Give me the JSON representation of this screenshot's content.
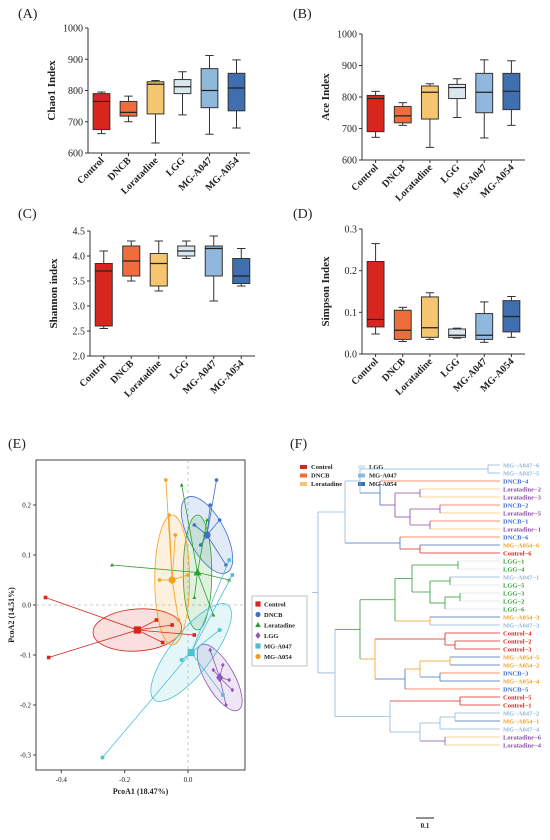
{
  "groups": [
    {
      "name": "Control",
      "color": "#d7261e"
    },
    {
      "name": "DNCB",
      "color": "#ef6c3c"
    },
    {
      "name": "Loratadine",
      "color": "#f6c56f"
    },
    {
      "name": "LGG",
      "color": "#dbe7ef"
    },
    {
      "name": "MG-A047",
      "color": "#8fb8dc"
    },
    {
      "name": "MG-A054",
      "color": "#3f6fae"
    }
  ],
  "chart_data": [
    {
      "panel": "(A)",
      "type": "box",
      "ylabel": "Chao1 Index",
      "ylim": [
        600,
        1000
      ],
      "yticks": [
        600,
        700,
        800,
        900,
        1000
      ],
      "categories": [
        "Control",
        "DNCB",
        "Loratadine",
        "LGG",
        "MG-A047",
        "MG-A054"
      ],
      "boxes": [
        {
          "min": 662,
          "q1": 675,
          "median": 765,
          "q3": 790,
          "max": 795
        },
        {
          "min": 700,
          "q1": 718,
          "median": 730,
          "q3": 765,
          "max": 782
        },
        {
          "min": 632,
          "q1": 725,
          "median": 820,
          "q3": 828,
          "max": 832
        },
        {
          "min": 722,
          "q1": 790,
          "median": 812,
          "q3": 835,
          "max": 860
        },
        {
          "min": 660,
          "q1": 745,
          "median": 800,
          "q3": 870,
          "max": 912
        },
        {
          "min": 680,
          "q1": 735,
          "median": 808,
          "q3": 855,
          "max": 898
        }
      ]
    },
    {
      "panel": "(B)",
      "type": "box",
      "ylabel": "Ace Index",
      "ylim": [
        600,
        1000
      ],
      "yticks": [
        600,
        700,
        800,
        900,
        1000
      ],
      "categories": [
        "Control",
        "DNCB",
        "Loratadine",
        "LGG",
        "MG-A047",
        "MG-A054"
      ],
      "boxes": [
        {
          "min": 672,
          "q1": 690,
          "median": 795,
          "q3": 805,
          "max": 818
        },
        {
          "min": 710,
          "q1": 718,
          "median": 740,
          "q3": 770,
          "max": 782
        },
        {
          "min": 640,
          "q1": 730,
          "median": 815,
          "q3": 835,
          "max": 842
        },
        {
          "min": 735,
          "q1": 795,
          "median": 830,
          "q3": 840,
          "max": 858
        },
        {
          "min": 670,
          "q1": 750,
          "median": 815,
          "q3": 875,
          "max": 918
        },
        {
          "min": 710,
          "q1": 760,
          "median": 818,
          "q3": 875,
          "max": 915
        }
      ]
    },
    {
      "panel": "(C)",
      "type": "box",
      "ylabel": "Shannon index",
      "ylim": [
        2.0,
        4.5
      ],
      "yticks": [
        "2.0",
        "2.5",
        "3.0",
        "3.5",
        "4.0",
        "4.5"
      ],
      "categories": [
        "Control",
        "DNCB",
        "Loratadine",
        "LGG",
        "MG-A047",
        "MG-A054"
      ],
      "boxes": [
        {
          "min": 2.55,
          "q1": 2.6,
          "median": 3.7,
          "q3": 3.85,
          "max": 4.1
        },
        {
          "min": 3.5,
          "q1": 3.6,
          "median": 3.9,
          "q3": 4.2,
          "max": 4.3
        },
        {
          "min": 3.3,
          "q1": 3.4,
          "median": 3.85,
          "q3": 4.05,
          "max": 4.3
        },
        {
          "min": 3.95,
          "q1": 4.0,
          "median": 4.1,
          "q3": 4.2,
          "max": 4.3
        },
        {
          "min": 3.1,
          "q1": 3.6,
          "median": 4.15,
          "q3": 4.2,
          "max": 4.4
        },
        {
          "min": 3.4,
          "q1": 3.45,
          "median": 3.6,
          "q3": 3.95,
          "max": 4.15
        }
      ]
    },
    {
      "panel": "(D)",
      "type": "box",
      "ylabel": "Simpson Index",
      "ylim": [
        0.0,
        0.3
      ],
      "yticks": [
        "0.0",
        "0.1",
        "0.2",
        "0.3"
      ],
      "categories": [
        "Control",
        "DNCB",
        "Loratadine",
        "LGG",
        "MG-A047",
        "MG-A054"
      ],
      "boxes": [
        {
          "min": 0.048,
          "q1": 0.065,
          "median": 0.083,
          "q3": 0.222,
          "max": 0.265
        },
        {
          "min": 0.03,
          "q1": 0.035,
          "median": 0.057,
          "q3": 0.105,
          "max": 0.112
        },
        {
          "min": 0.035,
          "q1": 0.04,
          "median": 0.063,
          "q3": 0.137,
          "max": 0.147
        },
        {
          "min": 0.038,
          "q1": 0.04,
          "median": 0.045,
          "q3": 0.06,
          "max": 0.062
        },
        {
          "min": 0.028,
          "q1": 0.035,
          "median": 0.045,
          "q3": 0.097,
          "max": 0.125
        },
        {
          "min": 0.04,
          "q1": 0.053,
          "median": 0.09,
          "q3": 0.128,
          "max": 0.138
        }
      ]
    },
    {
      "panel": "(E)",
      "type": "scatter",
      "xlabel": "PcoA1 (18.47%)",
      "ylabel": "PcoA2 (14.51%)",
      "xlim": [
        -0.48,
        0.18
      ],
      "ylim": [
        -0.33,
        0.29
      ],
      "xticks": [
        "-0.4",
        "-0.2",
        "0.0"
      ],
      "yticks": [
        "-0.3",
        "-0.2",
        "-0.1",
        "0.0",
        "0.1",
        "0.2"
      ],
      "series": [
        {
          "name": "Control",
          "centroid": [
            -0.16,
            -0.05
          ],
          "ellipse": {
            "rx": 0.14,
            "ry": 0.042,
            "angle": -4
          },
          "points": [
            [
              -0.45,
              0.015
            ],
            [
              -0.44,
              -0.105
            ],
            [
              -0.08,
              -0.075
            ],
            [
              0.02,
              -0.06
            ],
            [
              -0.05,
              -0.04
            ],
            [
              -0.1,
              -0.03
            ]
          ]
        },
        {
          "name": "DNCB",
          "centroid": [
            0.06,
            0.14
          ],
          "ellipse": {
            "rx": 0.058,
            "ry": 0.085,
            "angle": -28
          },
          "points": [
            [
              0.09,
              0.25
            ],
            [
              0.1,
              0.17
            ],
            [
              0.12,
              0.08
            ],
            [
              0.04,
              0.12
            ],
            [
              0.02,
              0.16
            ],
            [
              0.07,
              0.2
            ]
          ]
        },
        {
          "name": "Loratadine",
          "centroid": [
            0.03,
            0.065
          ],
          "ellipse": {
            "rx": 0.045,
            "ry": 0.115,
            "angle": 0
          },
          "points": [
            [
              -0.24,
              0.08
            ],
            [
              -0.02,
              0.24
            ],
            [
              0.06,
              0.17
            ],
            [
              0.13,
              0.05
            ],
            [
              0.08,
              -0.02
            ],
            [
              0.02,
              0.015
            ]
          ]
        },
        {
          "name": "LGG",
          "centroid": [
            0.1,
            -0.145
          ],
          "ellipse": {
            "rx": 0.045,
            "ry": 0.075,
            "angle": -30
          },
          "points": [
            [
              0.07,
              -0.09
            ],
            [
              0.12,
              -0.2
            ],
            [
              0.14,
              -0.17
            ],
            [
              0.11,
              -0.12
            ],
            [
              0.13,
              -0.15
            ],
            [
              0.08,
              -0.13
            ]
          ]
        },
        {
          "name": "MG-A047",
          "centroid": [
            0.01,
            -0.095
          ],
          "ellipse": {
            "rx": 0.065,
            "ry": 0.12,
            "angle": 38
          },
          "points": [
            [
              -0.27,
              -0.305
            ],
            [
              0.13,
              0.09
            ],
            [
              0.14,
              0.06
            ],
            [
              0.1,
              -0.05
            ],
            [
              0.11,
              -0.18
            ],
            [
              -0.02,
              -0.11
            ]
          ]
        },
        {
          "name": "MG-A054",
          "centroid": [
            -0.05,
            0.05
          ],
          "ellipse": {
            "rx": 0.055,
            "ry": 0.13,
            "angle": 0
          },
          "points": [
            [
              -0.07,
              0.25
            ],
            [
              -0.06,
              0.18
            ],
            [
              -0.04,
              0.14
            ],
            [
              -0.09,
              0.05
            ],
            [
              -0.03,
              -0.03
            ],
            [
              0.0,
              0.06
            ]
          ]
        }
      ]
    },
    {
      "panel": "(F)",
      "type": "dendrogram",
      "scale_label": "0.1",
      "leaves": [
        {
          "label": "MG−A047−6",
          "group": "MG-A047"
        },
        {
          "label": "MG−A047−5",
          "group": "MG-A047"
        },
        {
          "label": "DNCB−4",
          "group": "DNCB"
        },
        {
          "label": "Loratadine−2",
          "group": "Loratadine"
        },
        {
          "label": "Loratadine−3",
          "group": "Loratadine"
        },
        {
          "label": "DNCB−2",
          "group": "DNCB"
        },
        {
          "label": "Loratadine−5",
          "group": "Loratadine"
        },
        {
          "label": "DNCB−1",
          "group": "DNCB"
        },
        {
          "label": "Loratadine−1",
          "group": "Loratadine"
        },
        {
          "label": "DNCB−6",
          "group": "DNCB"
        },
        {
          "label": "MG−A054−6",
          "group": "MG-A054"
        },
        {
          "label": "Control−6",
          "group": "Control"
        },
        {
          "label": "LGG−1",
          "group": "LGG"
        },
        {
          "label": "LGG−4",
          "group": "LGG"
        },
        {
          "label": "MG−A047−1",
          "group": "MG-A047"
        },
        {
          "label": "LGG−5",
          "group": "LGG"
        },
        {
          "label": "LGG−3",
          "group": "LGG"
        },
        {
          "label": "LGG−2",
          "group": "LGG"
        },
        {
          "label": "LGG−6",
          "group": "LGG"
        },
        {
          "label": "MG−A054−3",
          "group": "MG-A054"
        },
        {
          "label": "MG−A047−3",
          "group": "MG-A047"
        },
        {
          "label": "Control−4",
          "group": "Control"
        },
        {
          "label": "Control−2",
          "group": "Control"
        },
        {
          "label": "Control−3",
          "group": "Control"
        },
        {
          "label": "MG−A054−5",
          "group": "MG-A054"
        },
        {
          "label": "MG−A054−2",
          "group": "MG-A054"
        },
        {
          "label": "DNCB−3",
          "group": "DNCB"
        },
        {
          "label": "MG−A054−4",
          "group": "MG-A054"
        },
        {
          "label": "DNCB−5",
          "group": "DNCB"
        },
        {
          "label": "Control−5",
          "group": "Control"
        },
        {
          "label": "Control−1",
          "group": "Control"
        },
        {
          "label": "MG−A047−2",
          "group": "MG-A047"
        },
        {
          "label": "MG−A054−1",
          "group": "MG-A054"
        },
        {
          "label": "MG−A047−4",
          "group": "MG-A047"
        },
        {
          "label": "Loratadine−6",
          "group": "Loratadine"
        },
        {
          "label": "Loratadine−4",
          "group": "Loratadine"
        }
      ]
    }
  ]
}
